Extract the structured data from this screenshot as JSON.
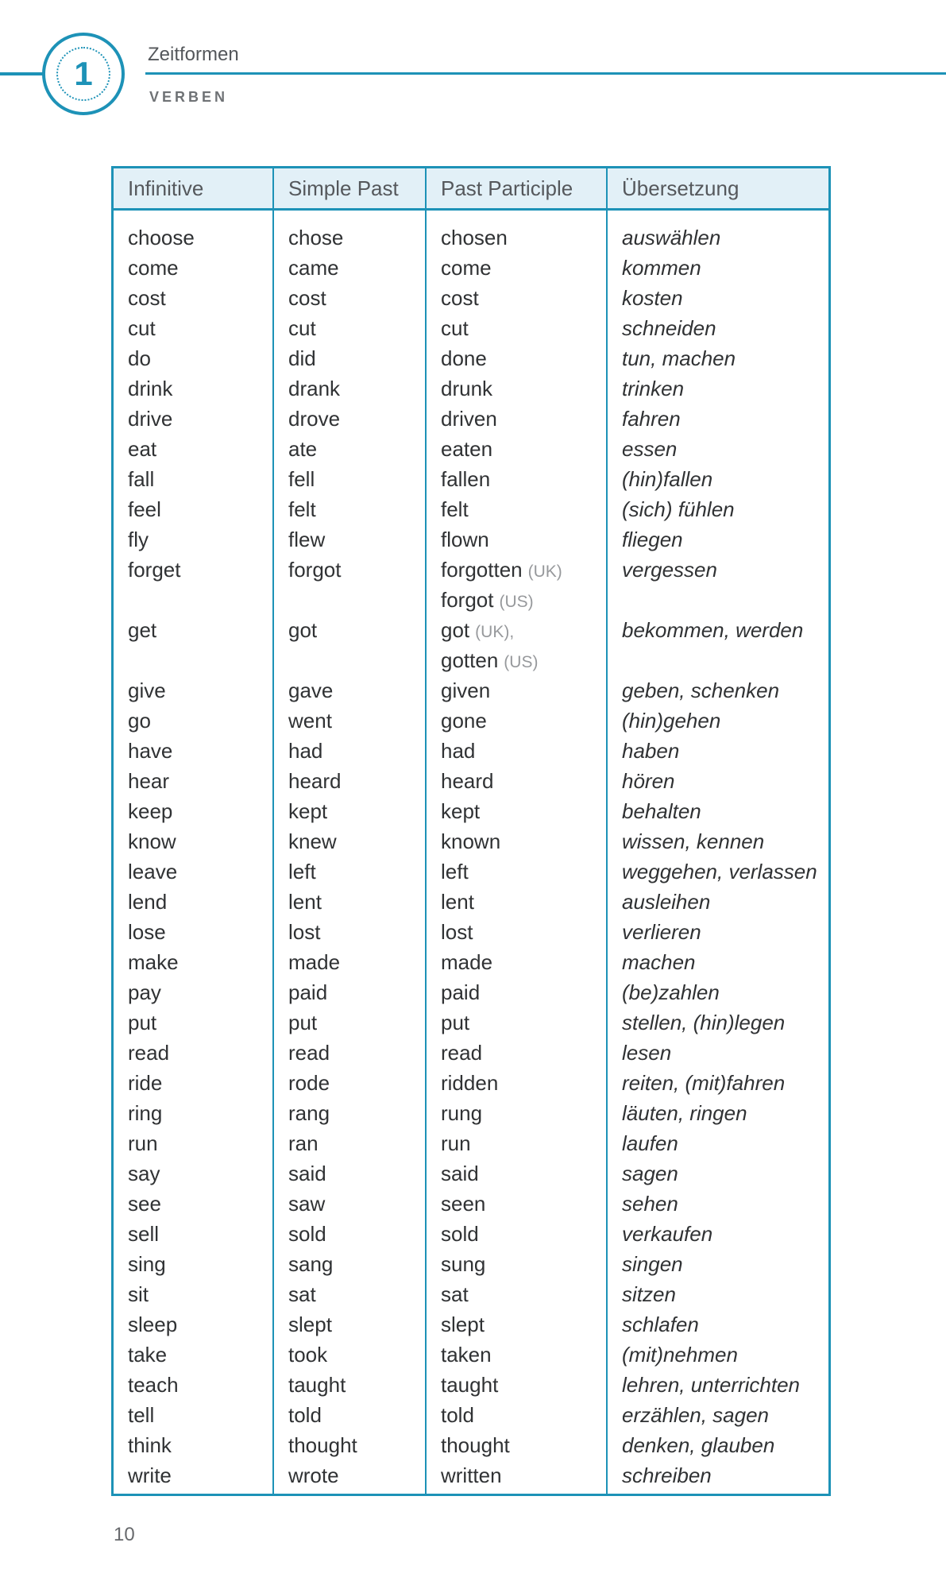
{
  "colors": {
    "teal": "#1d92b7",
    "header_bg": "#e2f0f7",
    "body_text": "#303234",
    "header_text": "#55585c",
    "note_gray": "#97999c"
  },
  "header": {
    "chapter_number": "1",
    "section": "Zeitformen",
    "subsection": "VERBEN"
  },
  "page": {
    "number": "10"
  },
  "table": {
    "columns": [
      {
        "label": "Infinitive"
      },
      {
        "label": "Simple Past"
      },
      {
        "label": "Past Participle"
      },
      {
        "label": "Übersetzung"
      }
    ],
    "rows": [
      {
        "inf": "choose",
        "past": "chose",
        "pp": "chosen",
        "ppnote": "",
        "de": "auswählen"
      },
      {
        "inf": "come",
        "past": "came",
        "pp": "come",
        "ppnote": "",
        "de": "kommen"
      },
      {
        "inf": "cost",
        "past": "cost",
        "pp": "cost",
        "ppnote": "",
        "de": "kosten"
      },
      {
        "inf": "cut",
        "past": "cut",
        "pp": "cut",
        "ppnote": "",
        "de": "schneiden"
      },
      {
        "inf": "do",
        "past": "did",
        "pp": "done",
        "ppnote": "",
        "de": "tun, machen"
      },
      {
        "inf": "drink",
        "past": "drank",
        "pp": "drunk",
        "ppnote": "",
        "de": "trinken"
      },
      {
        "inf": "drive",
        "past": "drove",
        "pp": "driven",
        "ppnote": "",
        "de": "fahren"
      },
      {
        "inf": "eat",
        "past": "ate",
        "pp": "eaten",
        "ppnote": "",
        "de": "essen"
      },
      {
        "inf": "fall",
        "past": "fell",
        "pp": "fallen",
        "ppnote": "",
        "de": "(hin)fallen"
      },
      {
        "inf": "feel",
        "past": "felt",
        "pp": "felt",
        "ppnote": "",
        "de": "(sich) fühlen"
      },
      {
        "inf": "fly",
        "past": "flew",
        "pp": "flown",
        "ppnote": "",
        "de": "fliegen"
      },
      {
        "inf": "forget",
        "past": "forgot",
        "pp": "forgotten",
        "ppnote": "(UK)",
        "de": "vergessen"
      },
      {
        "inf": "",
        "past": "",
        "pp": "forgot",
        "ppnote": "(US)",
        "de": ""
      },
      {
        "inf": "get",
        "past": "got",
        "pp": "got",
        "ppnote": "(UK),",
        "de": "bekommen, werden"
      },
      {
        "inf": "",
        "past": "",
        "pp": "gotten",
        "ppnote": "(US)",
        "de": ""
      },
      {
        "inf": "give",
        "past": "gave",
        "pp": "given",
        "ppnote": "",
        "de": "geben, schenken"
      },
      {
        "inf": "go",
        "past": "went",
        "pp": "gone",
        "ppnote": "",
        "de": "(hin)gehen"
      },
      {
        "inf": "have",
        "past": "had",
        "pp": "had",
        "ppnote": "",
        "de": "haben"
      },
      {
        "inf": "hear",
        "past": "heard",
        "pp": "heard",
        "ppnote": "",
        "de": "hören"
      },
      {
        "inf": "keep",
        "past": "kept",
        "pp": "kept",
        "ppnote": "",
        "de": "behalten"
      },
      {
        "inf": "know",
        "past": "knew",
        "pp": "known",
        "ppnote": "",
        "de": "wissen, kennen"
      },
      {
        "inf": "leave",
        "past": "left",
        "pp": "left",
        "ppnote": "",
        "de": "weggehen, verlassen"
      },
      {
        "inf": "lend",
        "past": "lent",
        "pp": "lent",
        "ppnote": "",
        "de": "ausleihen"
      },
      {
        "inf": "lose",
        "past": "lost",
        "pp": "lost",
        "ppnote": "",
        "de": "verlieren"
      },
      {
        "inf": "make",
        "past": "made",
        "pp": "made",
        "ppnote": "",
        "de": "machen"
      },
      {
        "inf": "pay",
        "past": "paid",
        "pp": "paid",
        "ppnote": "",
        "de": "(be)zahlen"
      },
      {
        "inf": "put",
        "past": "put",
        "pp": "put",
        "ppnote": "",
        "de": "stellen, (hin)legen"
      },
      {
        "inf": "read",
        "past": "read",
        "pp": "read",
        "ppnote": "",
        "de": "lesen"
      },
      {
        "inf": "ride",
        "past": "rode",
        "pp": "ridden",
        "ppnote": "",
        "de": "reiten, (mit)fahren"
      },
      {
        "inf": "ring",
        "past": "rang",
        "pp": "rung",
        "ppnote": "",
        "de": "läuten, ringen"
      },
      {
        "inf": "run",
        "past": "ran",
        "pp": "run",
        "ppnote": "",
        "de": "laufen"
      },
      {
        "inf": "say",
        "past": "said",
        "pp": "said",
        "ppnote": "",
        "de": "sagen"
      },
      {
        "inf": "see",
        "past": "saw",
        "pp": "seen",
        "ppnote": "",
        "de": "sehen"
      },
      {
        "inf": "sell",
        "past": "sold",
        "pp": "sold",
        "ppnote": "",
        "de": "verkaufen"
      },
      {
        "inf": "sing",
        "past": "sang",
        "pp": "sung",
        "ppnote": "",
        "de": "singen"
      },
      {
        "inf": "sit",
        "past": "sat",
        "pp": "sat",
        "ppnote": "",
        "de": "sitzen"
      },
      {
        "inf": "sleep",
        "past": "slept",
        "pp": "slept",
        "ppnote": "",
        "de": "schlafen"
      },
      {
        "inf": "take",
        "past": "took",
        "pp": "taken",
        "ppnote": "",
        "de": "(mit)nehmen"
      },
      {
        "inf": "teach",
        "past": "taught",
        "pp": "taught",
        "ppnote": "",
        "de": "lehren, unterrichten"
      },
      {
        "inf": "tell",
        "past": "told",
        "pp": "told",
        "ppnote": "",
        "de": "erzählen, sagen"
      },
      {
        "inf": "think",
        "past": "thought",
        "pp": "thought",
        "ppnote": "",
        "de": "denken, glauben"
      },
      {
        "inf": "write",
        "past": "wrote",
        "pp": "written",
        "ppnote": "",
        "de": "schreiben"
      }
    ]
  }
}
